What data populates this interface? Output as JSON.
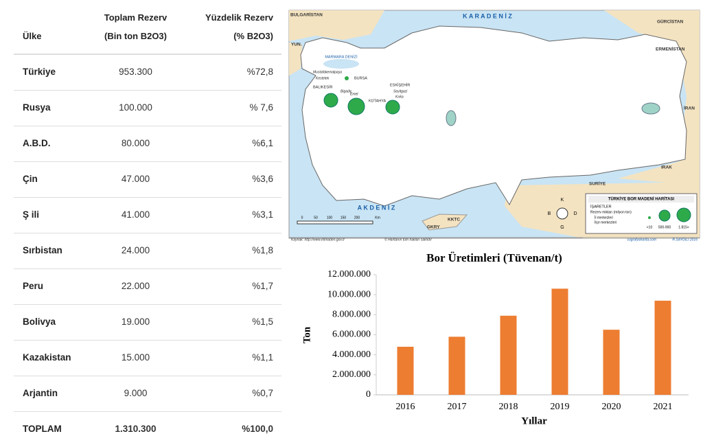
{
  "table": {
    "headers": [
      [
        "Ülke"
      ],
      [
        "Toplam Rezerv",
        "(Bin ton B2O3)"
      ],
      [
        "Yüzdelik Rezerv",
        "(% B2O3)"
      ]
    ],
    "rows": [
      [
        "Türkiye",
        "953.300",
        "%72,8"
      ],
      [
        "Rusya",
        "100.000",
        "% 7,6"
      ],
      [
        "A.B.D.",
        "80.000",
        "%6,1"
      ],
      [
        "Çin",
        "47.000",
        "%3,6"
      ],
      [
        "Ş ili",
        "41.000",
        "%3,1"
      ],
      [
        "Sırbistan",
        "24.000",
        "%1,8"
      ],
      [
        "Peru",
        "22.000",
        "%1,7"
      ],
      [
        "Bolivya",
        "19.000",
        "%1,5"
      ],
      [
        "Kazakistan",
        "15.000",
        "%1,1"
      ],
      [
        "Arjantin",
        "9.000",
        "%0,7"
      ]
    ],
    "total": [
      "TOPLAM",
      "1.310.300",
      "%100,0"
    ]
  },
  "map": {
    "seas": [
      "K A R A D E N İ Z",
      "A K D E N İ Z",
      "MARMARA DENİZİ"
    ],
    "countries": [
      "BULGARİSTAN",
      "YUN.",
      "GÜRCİSTAN",
      "ERMENİSTAN",
      "İRAN",
      "IRAK",
      "SURİYE",
      "KKTC",
      "GKRY"
    ],
    "cities": [
      "BURSA",
      "BALIKESİR",
      "KÜTAHYA",
      "ESKİŞEHİR"
    ],
    "mines": [
      "Mustafakemalpaşa",
      "Kestelek",
      "Bigadiç",
      "Emet",
      "Seyitgazi",
      "Kırka"
    ],
    "legend": {
      "title": "TÜRKİYE BOR MADENİ HARİTASI",
      "heading": "İŞARETLER",
      "subtitle": "Rezerv miktarı (milyon ton)",
      "items": [
        "İl merkezleri",
        "İlçe merkezleri"
      ],
      "sizes": [
        "<10",
        "500-900",
        "1.815>"
      ]
    },
    "compass": [
      "K",
      "B",
      "D",
      "G"
    ],
    "scale": [
      "0",
      "50",
      "100",
      "150",
      "200",
      "Km"
    ],
    "footer": [
      "Kaynak: http://www.etimaden.gov.tr",
      "© Haritanın tüm hakları saklıdır",
      "cografyaharita.com",
      "R.SAYGILI 2016"
    ]
  },
  "chart_data": {
    "type": "bar",
    "title": "Bor Üretimleri  (Tüvenan/t)",
    "x_label": "Yıllar",
    "y_label": "Ton",
    "categories": [
      "2016",
      "2017",
      "2018",
      "2019",
      "2020",
      "2021"
    ],
    "values": [
      4800000,
      5800000,
      7900000,
      10600000,
      6500000,
      9400000
    ],
    "color": "#ed7d31",
    "ylim": [
      0,
      12000000
    ],
    "yticks": [
      0,
      {
        "value": 2000000,
        "label": "2.000.000"
      },
      {
        "value": 4000000,
        "label": "4.000.000"
      },
      {
        "value": 6000000,
        "label": "6.000.000"
      },
      {
        "value": 8000000,
        "label": "8.000.000"
      },
      {
        "value": 10000000,
        "label": "10.000.000"
      },
      {
        "value": 12000000,
        "label": "12.000.000"
      }
    ],
    "grid": false
  }
}
